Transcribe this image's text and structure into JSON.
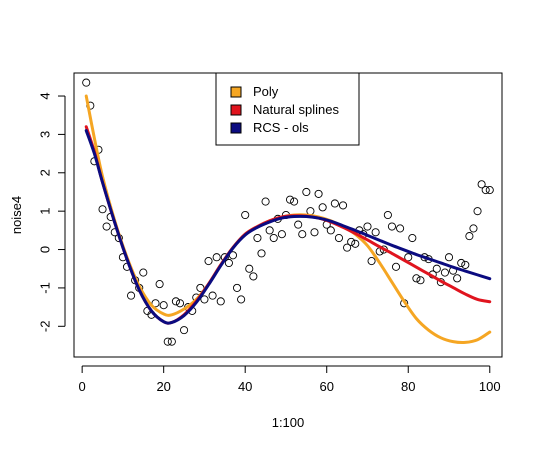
{
  "chart_data": {
    "type": "scatter",
    "xlabel": "1:100",
    "ylabel": "noise4",
    "xlim": [
      -2,
      103
    ],
    "ylim": [
      -2.8,
      4.6
    ],
    "xticks": [
      0,
      20,
      40,
      60,
      80,
      100
    ],
    "yticks": [
      -2,
      -1,
      0,
      1,
      2,
      3,
      4
    ],
    "legend": {
      "placement": "top-center",
      "entries": [
        {
          "label": "Poly",
          "color": "#F5A623"
        },
        {
          "label": "Natural splines",
          "color": "#E0141E"
        },
        {
          "label": "RCS - ols",
          "color": "#0B0B80"
        }
      ]
    },
    "points": {
      "x": [
        1,
        2,
        3,
        4,
        5,
        6,
        7,
        8,
        9,
        10,
        11,
        12,
        13,
        14,
        15,
        16,
        17,
        18,
        19,
        20,
        21,
        22,
        23,
        24,
        25,
        26,
        27,
        28,
        29,
        30,
        31,
        32,
        33,
        34,
        35,
        36,
        37,
        38,
        39,
        40,
        41,
        42,
        43,
        44,
        45,
        46,
        47,
        48,
        49,
        50,
        51,
        52,
        53,
        54,
        55,
        56,
        57,
        58,
        59,
        60,
        61,
        62,
        63,
        64,
        65,
        66,
        67,
        68,
        69,
        70,
        71,
        72,
        73,
        74,
        75,
        76,
        77,
        78,
        79,
        80,
        81,
        82,
        83,
        84,
        85,
        86,
        87,
        88,
        89,
        90,
        91,
        92,
        93,
        94,
        95,
        96,
        97,
        98,
        99,
        100
      ],
      "y": [
        4.35,
        3.75,
        2.3,
        2.6,
        1.05,
        0.6,
        0.85,
        0.45,
        0.3,
        -0.2,
        -0.45,
        -1.2,
        -0.8,
        -1.0,
        -0.6,
        -1.6,
        -1.7,
        -1.4,
        -0.9,
        -1.45,
        -2.4,
        -2.4,
        -1.35,
        -1.4,
        -2.1,
        -1.5,
        -1.6,
        -1.25,
        -1.0,
        -1.3,
        -0.3,
        -1.2,
        -0.2,
        -1.35,
        -0.2,
        -0.35,
        -0.15,
        -1.0,
        -1.3,
        0.9,
        -0.5,
        -0.7,
        0.3,
        -0.1,
        1.25,
        0.5,
        0.3,
        0.8,
        0.4,
        0.9,
        1.3,
        1.25,
        0.65,
        0.4,
        1.5,
        1.0,
        0.45,
        1.45,
        1.1,
        0.65,
        0.5,
        1.2,
        0.3,
        1.15,
        0.05,
        0.2,
        0.15,
        0.5,
        0.4,
        0.6,
        -0.3,
        0.45,
        -0.05,
        0.0,
        0.9,
        0.6,
        -0.45,
        0.55,
        -1.4,
        -0.2,
        0.3,
        -0.75,
        -0.8,
        -0.2,
        -0.25,
        -0.65,
        -0.5,
        -0.85,
        -0.6,
        -0.2,
        -0.55,
        -0.75,
        -0.35,
        -0.4,
        0.35,
        0.55,
        1.0,
        1.7,
        1.55,
        1.55
      ]
    },
    "series": [
      {
        "name": "Poly",
        "color": "#F5A623",
        "x": [
          1,
          3,
          5,
          8,
          11,
          14,
          17,
          20,
          22,
          25,
          28,
          31,
          34,
          37,
          40,
          43,
          46,
          49,
          52,
          55,
          58,
          61,
          64,
          67,
          70,
          73,
          76,
          79,
          82,
          85,
          88,
          91,
          94,
          97,
          100
        ],
        "y": [
          4.0,
          2.9,
          1.9,
          0.75,
          -0.2,
          -0.95,
          -1.45,
          -1.68,
          -1.7,
          -1.55,
          -1.3,
          -0.9,
          -0.4,
          0.05,
          0.4,
          0.6,
          0.75,
          0.85,
          0.9,
          0.9,
          0.85,
          0.75,
          0.6,
          0.4,
          0.1,
          -0.35,
          -0.85,
          -1.35,
          -1.8,
          -2.1,
          -2.3,
          -2.4,
          -2.42,
          -2.35,
          -2.15
        ]
      },
      {
        "name": "Natural splines",
        "color": "#E0141E",
        "x": [
          1,
          3,
          5,
          8,
          11,
          14,
          17,
          20,
          22,
          25,
          28,
          31,
          34,
          37,
          40,
          43,
          46,
          49,
          52,
          55,
          58,
          61,
          64,
          67,
          70,
          73,
          76,
          79,
          82,
          85,
          88,
          91,
          94,
          97,
          100
        ],
        "y": [
          3.2,
          2.55,
          1.75,
          0.7,
          -0.25,
          -1.05,
          -1.6,
          -1.88,
          -1.9,
          -1.7,
          -1.35,
          -0.9,
          -0.4,
          0.05,
          0.4,
          0.6,
          0.75,
          0.85,
          0.88,
          0.87,
          0.82,
          0.72,
          0.58,
          0.42,
          0.25,
          0.07,
          -0.1,
          -0.28,
          -0.46,
          -0.64,
          -0.82,
          -0.99,
          -1.16,
          -1.3,
          -1.36
        ]
      },
      {
        "name": "RCS - ols",
        "color": "#0B0B80",
        "x": [
          1,
          3,
          5,
          8,
          11,
          14,
          17,
          20,
          22,
          25,
          28,
          31,
          34,
          37,
          40,
          43,
          46,
          49,
          52,
          55,
          58,
          61,
          64,
          67,
          70,
          73,
          76,
          79,
          82,
          85,
          88,
          91,
          94,
          97,
          100
        ],
        "y": [
          3.1,
          2.5,
          1.75,
          0.7,
          -0.25,
          -1.05,
          -1.6,
          -1.88,
          -1.9,
          -1.72,
          -1.38,
          -0.92,
          -0.42,
          0.04,
          0.38,
          0.58,
          0.72,
          0.82,
          0.86,
          0.86,
          0.82,
          0.74,
          0.62,
          0.5,
          0.37,
          0.24,
          0.11,
          -0.01,
          -0.13,
          -0.24,
          -0.35,
          -0.46,
          -0.56,
          -0.66,
          -0.76
        ]
      }
    ]
  }
}
